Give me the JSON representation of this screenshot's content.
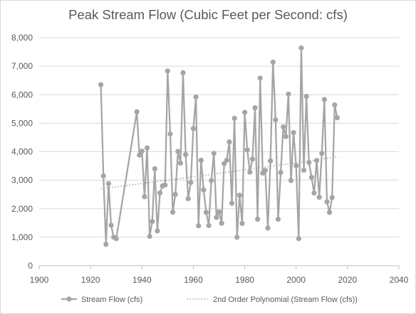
{
  "chart_data": {
    "type": "line",
    "title": "Peak Stream Flow (Cubic Feet per Second: cfs)",
    "xlabel": "",
    "ylabel": "",
    "xlim": [
      1900,
      2040
    ],
    "ylim": [
      0,
      8000
    ],
    "x_ticks": [
      1900,
      1920,
      1940,
      1960,
      1980,
      2000,
      2020,
      2040
    ],
    "y_ticks": [
      0,
      1000,
      2000,
      3000,
      4000,
      5000,
      6000,
      7000,
      8000
    ],
    "y_tick_labels": [
      "0",
      "1,000",
      "2,000",
      "3,000",
      "4,000",
      "5,000",
      "6,000",
      "7,000",
      "8,000"
    ],
    "grid": "horizontal",
    "legend_position": "bottom",
    "series": [
      {
        "name": "Stream Flow (cfs)",
        "color": "#a5a5a5",
        "points": [
          [
            1924,
            6350
          ],
          [
            1925,
            3150
          ],
          [
            1926,
            750
          ],
          [
            1927,
            2880
          ],
          [
            1928,
            1420
          ],
          [
            1929,
            1000
          ],
          [
            1930,
            950
          ],
          [
            1938,
            5400
          ],
          [
            1939,
            3880
          ],
          [
            1940,
            4020
          ],
          [
            1941,
            2420
          ],
          [
            1942,
            4130
          ],
          [
            1943,
            1030
          ],
          [
            1944,
            1550
          ],
          [
            1945,
            3400
          ],
          [
            1946,
            1220
          ],
          [
            1947,
            2550
          ],
          [
            1948,
            2800
          ],
          [
            1949,
            2830
          ],
          [
            1950,
            6830
          ],
          [
            1951,
            4620
          ],
          [
            1952,
            1880
          ],
          [
            1953,
            2500
          ],
          [
            1954,
            4010
          ],
          [
            1955,
            3600
          ],
          [
            1956,
            6770
          ],
          [
            1957,
            3900
          ],
          [
            1958,
            2350
          ],
          [
            1959,
            2920
          ],
          [
            1960,
            4810
          ],
          [
            1961,
            5920
          ],
          [
            1962,
            1400
          ],
          [
            1963,
            3700
          ],
          [
            1964,
            2660
          ],
          [
            1965,
            1870
          ],
          [
            1966,
            1410
          ],
          [
            1967,
            2990
          ],
          [
            1968,
            3940
          ],
          [
            1969,
            1690
          ],
          [
            1970,
            1890
          ],
          [
            1971,
            1490
          ],
          [
            1972,
            3580
          ],
          [
            1973,
            3700
          ],
          [
            1974,
            4340
          ],
          [
            1975,
            2190
          ],
          [
            1976,
            5170
          ],
          [
            1977,
            1000
          ],
          [
            1978,
            2470
          ],
          [
            1979,
            1480
          ],
          [
            1980,
            5380
          ],
          [
            1981,
            4060
          ],
          [
            1982,
            3280
          ],
          [
            1983,
            3740
          ],
          [
            1984,
            5540
          ],
          [
            1985,
            1630
          ],
          [
            1986,
            6580
          ],
          [
            1987,
            3250
          ],
          [
            1988,
            3340
          ],
          [
            1989,
            1320
          ],
          [
            1990,
            3680
          ],
          [
            1991,
            7140
          ],
          [
            1992,
            5120
          ],
          [
            1993,
            1630
          ],
          [
            1994,
            3270
          ],
          [
            1995,
            4870
          ],
          [
            1996,
            4530
          ],
          [
            1997,
            6020
          ],
          [
            1998,
            2990
          ],
          [
            1999,
            4670
          ],
          [
            2000,
            3510
          ],
          [
            2001,
            950
          ],
          [
            2002,
            7640
          ],
          [
            2003,
            3350
          ],
          [
            2004,
            5940
          ],
          [
            2005,
            3620
          ],
          [
            2006,
            3100
          ],
          [
            2007,
            2550
          ],
          [
            2008,
            3690
          ],
          [
            2009,
            2400
          ],
          [
            2010,
            3940
          ],
          [
            2011,
            5830
          ],
          [
            2012,
            2240
          ],
          [
            2013,
            1870
          ],
          [
            2014,
            2390
          ],
          [
            2015,
            5640
          ],
          [
            2016,
            5190
          ]
        ]
      },
      {
        "name": "2nd Order Polynomial (Stream Flow (cfs))",
        "color": "#a5a5a5",
        "style": "dotted",
        "x_range": [
          1924,
          2016
        ],
        "coefficients": {
          "a": 0.00945,
          "c_center": 1924,
          "b": 11.3,
          "c": 2700
        }
      }
    ]
  }
}
